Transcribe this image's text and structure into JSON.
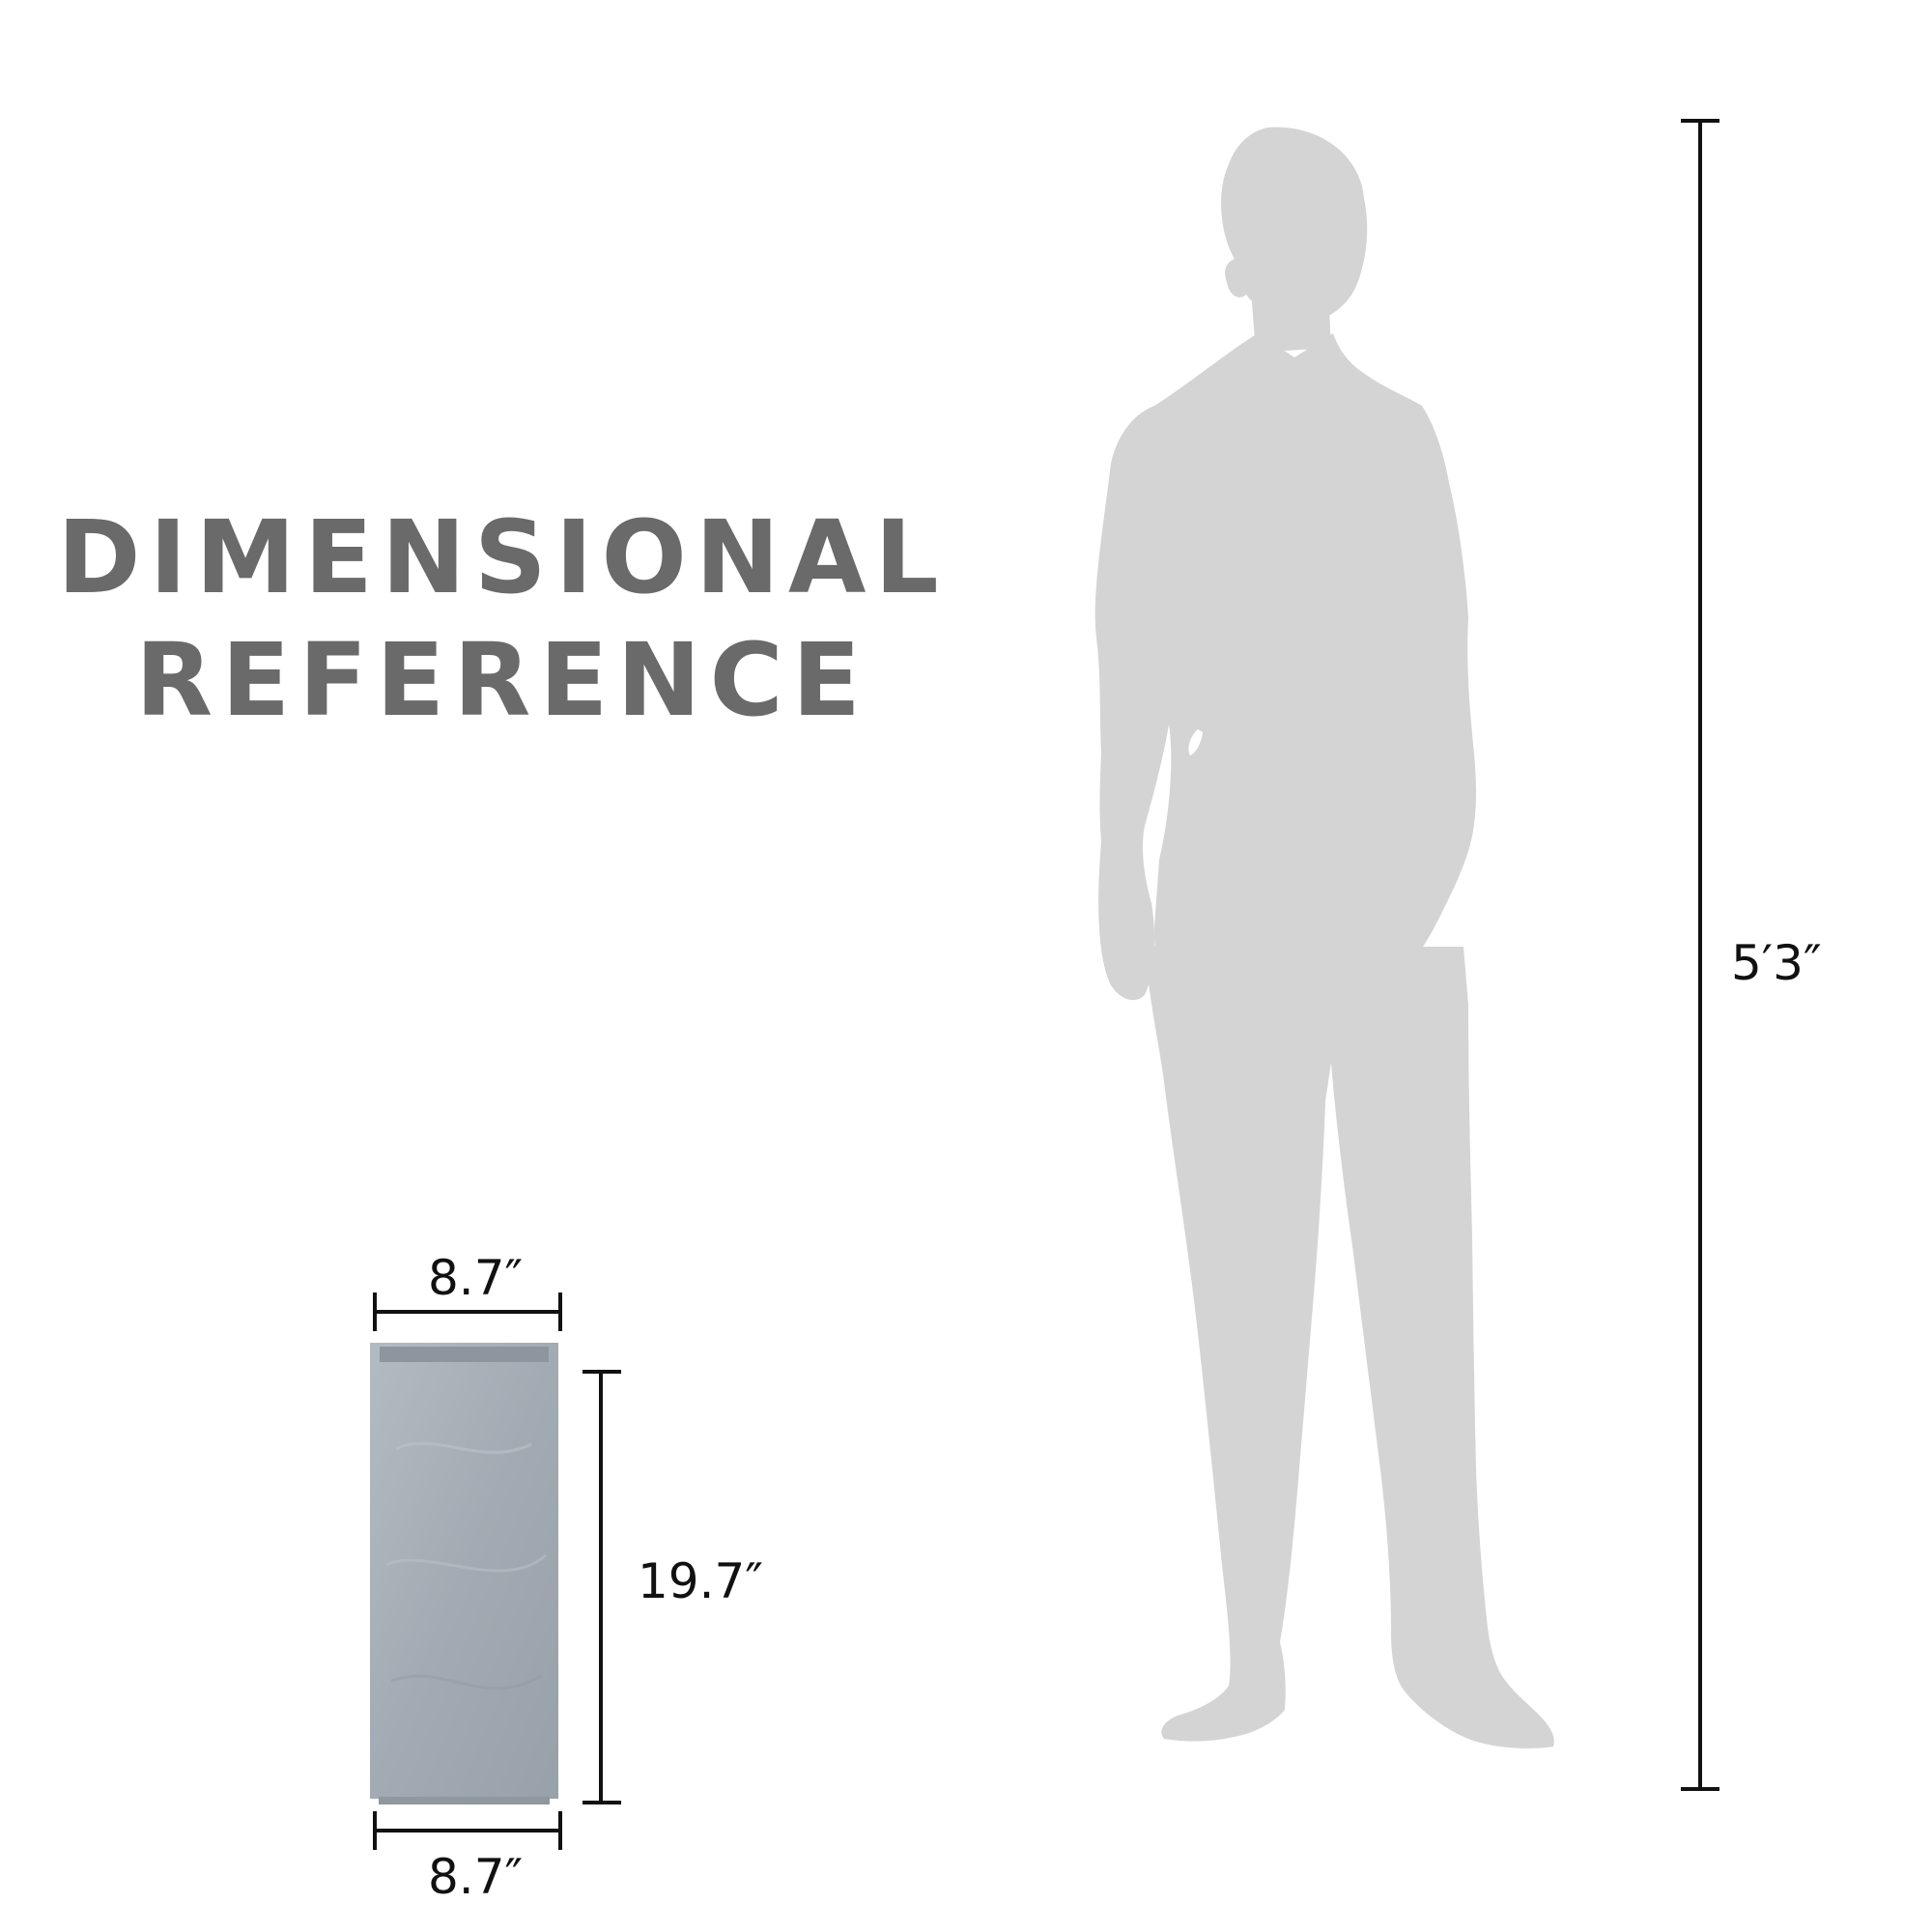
{
  "title": {
    "line1": "DIMENSIONAL",
    "line2": "REFERENCE"
  },
  "dimensions": {
    "person_height": "5′3″",
    "planter_top_width": "8.7″",
    "planter_height": "19.7″",
    "planter_bottom_width": "8.7″"
  },
  "colors": {
    "silhouette": "#d4d4d4",
    "planter": "#a4adb4",
    "title": "#6a6a6a",
    "dimension_line": "#111111"
  }
}
